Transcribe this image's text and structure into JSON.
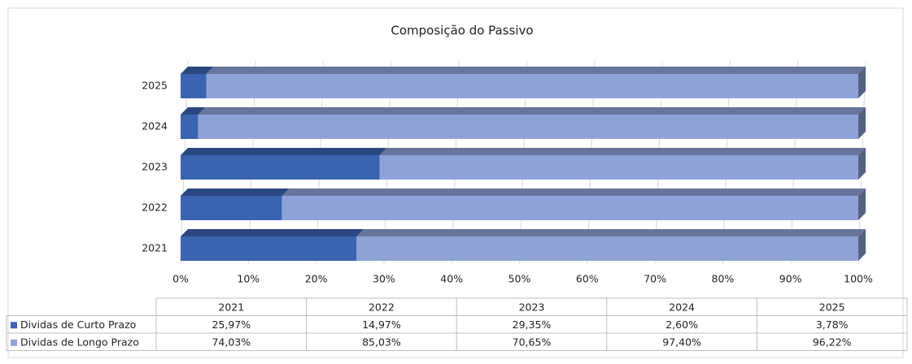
{
  "chart_data": {
    "type": "bar",
    "orientation": "horizontal",
    "stacked": true,
    "title": "Composição do Passivo",
    "categories": [
      "2021",
      "2022",
      "2023",
      "2024",
      "2025"
    ],
    "series": [
      {
        "name": "Dividas de Curto Prazo",
        "color": "#3a63b0",
        "values": [
          25.97,
          14.97,
          29.35,
          2.6,
          3.78
        ],
        "value_labels": [
          "25,97%",
          "14,97%",
          "29,35%",
          "2,60%",
          "3,78%"
        ]
      },
      {
        "name": "Dividas de Longo Prazo",
        "color": "#8fa2d8",
        "values": [
          74.03,
          85.03,
          70.65,
          97.4,
          96.22
        ],
        "value_labels": [
          "74,03%",
          "85,03%",
          "70,65%",
          "97,40%",
          "96,22%"
        ]
      }
    ],
    "xlim": [
      0,
      100
    ],
    "xticks": [
      {
        "value": 0,
        "label": "0%"
      },
      {
        "value": 10,
        "label": "10%"
      },
      {
        "value": 20,
        "label": "20%"
      },
      {
        "value": 30,
        "label": "30%"
      },
      {
        "value": 40,
        "label": "40%"
      },
      {
        "value": 50,
        "label": "50%"
      },
      {
        "value": 60,
        "label": "60%"
      },
      {
        "value": 70,
        "label": "70%"
      },
      {
        "value": 80,
        "label": "80%"
      },
      {
        "value": 90,
        "label": "90%"
      },
      {
        "value": 100,
        "label": "100%"
      }
    ],
    "grid": true,
    "legend": "bottom"
  }
}
